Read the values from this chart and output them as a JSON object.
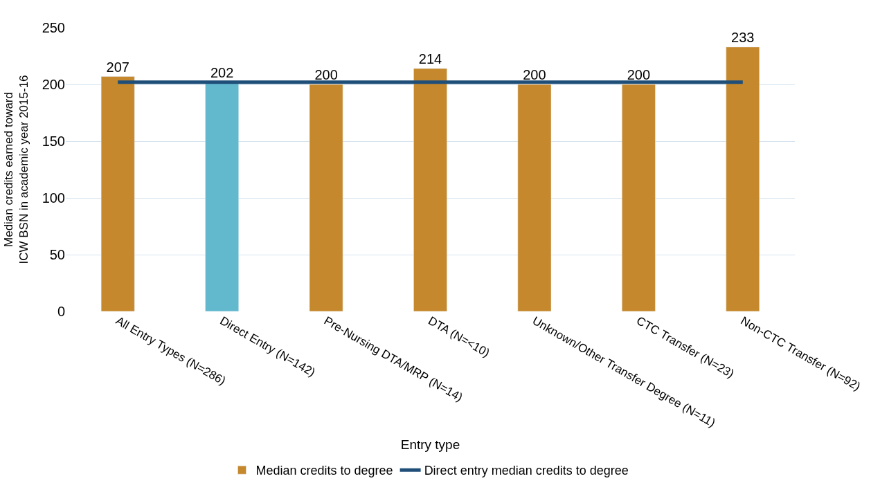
{
  "chart_data": {
    "type": "bar",
    "xlabel": "Entry type",
    "ylabel": "Median credits earned toward ICW BSN in academic year 2015-16",
    "categories": [
      "All Entry Types (N=286)",
      "Direct Entry (N=142)",
      "Pre-Nursing DTA/MRP (N=14)",
      "DTA (N=<10)",
      "Unknown/Other Transfer Degree (N=11)",
      "CTC Transfer (N=23)",
      "Non-CTC Transfer (N=92)"
    ],
    "series": [
      {
        "name": "Median credits to degree",
        "color": "#c5882c",
        "colors": [
          "#c5882c",
          "#62b8cd",
          "#c5882c",
          "#c5882c",
          "#c5882c",
          "#c5882c",
          "#c5882c"
        ],
        "values": [
          207,
          202,
          200,
          214,
          200,
          200,
          233
        ],
        "data_labels": true
      },
      {
        "name": "Direct entry median credits to degree",
        "type": "line",
        "color": "#1f4e79",
        "values": [
          202,
          202,
          202,
          202,
          202,
          202,
          202
        ]
      }
    ],
    "ylim": [
      0,
      250
    ],
    "yticks": [
      0,
      50,
      100,
      150,
      200,
      250
    ],
    "grid": "y",
    "legend": "bottom"
  }
}
